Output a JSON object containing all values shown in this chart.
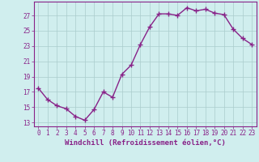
{
  "x": [
    0,
    1,
    2,
    3,
    4,
    5,
    6,
    7,
    8,
    9,
    10,
    11,
    12,
    13,
    14,
    15,
    16,
    17,
    18,
    19,
    20,
    21,
    22,
    23
  ],
  "y": [
    17.5,
    16.0,
    15.2,
    14.8,
    13.8,
    13.3,
    14.7,
    17.0,
    16.3,
    19.3,
    20.5,
    23.2,
    25.5,
    27.2,
    27.2,
    27.0,
    28.0,
    27.6,
    27.8,
    27.3,
    27.1,
    25.2,
    24.0,
    23.2
  ],
  "line_color": "#882288",
  "marker": "+",
  "markersize": 4,
  "linewidth": 1.0,
  "bg_color": "#d0eeee",
  "grid_color": "#aacccc",
  "xlabel": "Windchill (Refroidissement éolien,°C)",
  "ylim": [
    12.5,
    28.8
  ],
  "xlim": [
    -0.5,
    23.5
  ],
  "yticks": [
    13,
    15,
    17,
    19,
    21,
    23,
    25,
    27
  ],
  "xticks": [
    0,
    1,
    2,
    3,
    4,
    5,
    6,
    7,
    8,
    9,
    10,
    11,
    12,
    13,
    14,
    15,
    16,
    17,
    18,
    19,
    20,
    21,
    22,
    23
  ],
  "tick_fontsize": 5.5,
  "xlabel_fontsize": 6.5
}
